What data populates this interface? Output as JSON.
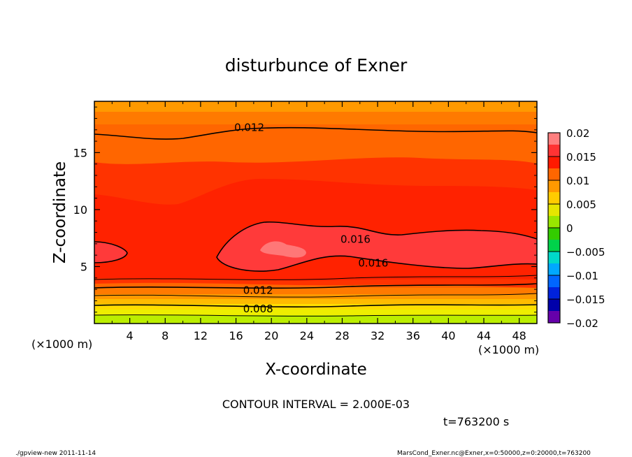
{
  "chart_data": {
    "type": "contour",
    "title": "disturbunce of Exner",
    "xlabel": "X-coordinate",
    "ylabel": "Z-coordinate",
    "x_unit": "(×1000 m)",
    "y_unit": "(×1000 m)",
    "xlim": [
      0,
      50
    ],
    "ylim": [
      0,
      19.5
    ],
    "x_ticks": [
      4,
      8,
      12,
      16,
      20,
      24,
      28,
      32,
      36,
      40,
      44,
      48
    ],
    "y_ticks": [
      5,
      10,
      15
    ],
    "contour_interval_text": "CONTOUR INTERVAL = 2.000E-03",
    "time_text": "t=763200 s",
    "contour_labels": [
      {
        "text": "0.012",
        "x": 17.5,
        "z": 17.2
      },
      {
        "text": "0.016",
        "x": 29.5,
        "z": 7.4
      },
      {
        "text": "0.016",
        "x": 31.5,
        "z": 5.3
      },
      {
        "text": "0.012",
        "x": 18.5,
        "z": 2.9
      },
      {
        "text": "0.008",
        "x": 18.5,
        "z": 1.3
      }
    ],
    "colorbar": {
      "min": -0.02,
      "max": 0.02,
      "tick_labels": [
        "0.02",
        "0.015",
        "0.01",
        "0.005",
        "0",
        "−0.005",
        "−0.01",
        "−0.015",
        "−0.02"
      ],
      "colors": [
        "#ff7f7f",
        "#ff3333",
        "#ff1a00",
        "#ff6600",
        "#ff9900",
        "#ffcc00",
        "#e6e600",
        "#99e600",
        "#33cc00",
        "#00d24a",
        "#00d9c9",
        "#00a8ff",
        "#0066ff",
        "#0022dd",
        "#0000aa",
        "#6600aa"
      ]
    }
  },
  "footer": {
    "left": "./gpview-new   2011-11-14",
    "right": "MarsCond_Exner.nc@Exner,x=0:50000,z=0:20000,t=763200"
  }
}
